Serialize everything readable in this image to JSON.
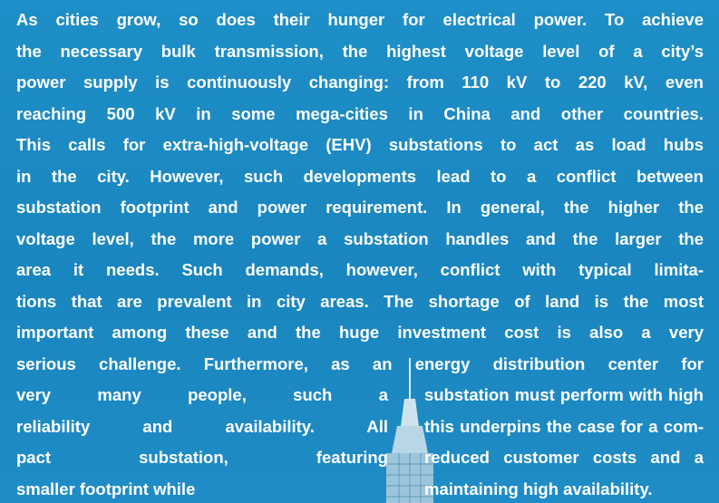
{
  "paragraph": {
    "lines": [
      "As cities grow, so does their hunger for electrical power. To achieve",
      "the necessary bulk transmission, the highest voltage level of a city’s",
      "power supply is continuously changing: from 110 kV to 220 kV, even",
      "reaching 500 kV in some mega-cities in China and other countries.",
      "This calls for extra-high-voltage (EHV) substations to act as load hubs",
      "in the city. However, such developments lead to a conflict between",
      "substation footprint and power requirement. In general, the higher the",
      "voltage level, the more power a substation handles and the larger the",
      "area it needs. Such demands, however, conflict with typical limita-",
      "tions that are prevalent in city areas. The shortage of land is the most",
      "important among these and the huge investment cost is also a very",
      "serious challenge. Furthermore, as an energy distribution center for"
    ],
    "split_lines": [
      [
        "very many people, such a",
        "substation must perform with high"
      ],
      [
        "reliability and availability. All",
        "this underpins the case for a com-"
      ],
      [
        "pact substation, featuring",
        "reduced customer costs and a"
      ],
      [
        "smaller footprint while",
        "maintaining high availability."
      ]
    ]
  }
}
